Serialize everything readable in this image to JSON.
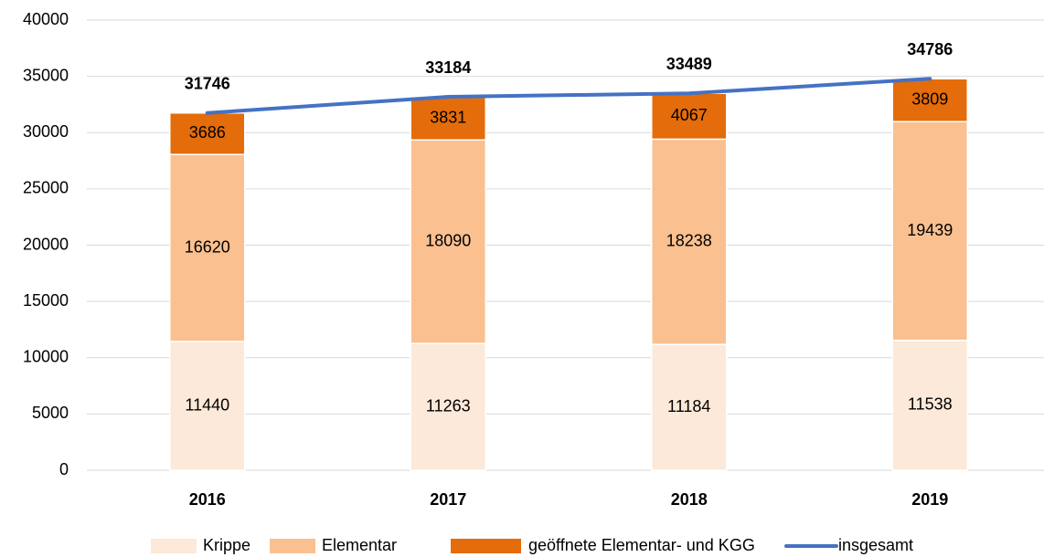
{
  "chart_data": {
    "type": "bar",
    "stacked": true,
    "categories": [
      "2016",
      "2017",
      "2018",
      "2019"
    ],
    "series": [
      {
        "name": "Krippe",
        "color": "#fde9d9",
        "values": [
          11440,
          11263,
          11184,
          11538
        ]
      },
      {
        "name": "Elementar",
        "color": "#fac090",
        "values": [
          16620,
          18090,
          18238,
          19439
        ]
      },
      {
        "name": "geöffnete Elementar- und KGG",
        "color": "#e46c0a",
        "values": [
          3686,
          3831,
          4067,
          3809
        ]
      },
      {
        "name": "insgesamt",
        "color": "#4472c4",
        "type": "line",
        "values": [
          31746,
          33184,
          33489,
          34786
        ]
      }
    ],
    "ylim": [
      0,
      40000
    ],
    "yticks": [
      0,
      5000,
      10000,
      15000,
      20000,
      25000,
      30000,
      35000,
      40000
    ],
    "grid": true,
    "legend": "bottom"
  }
}
